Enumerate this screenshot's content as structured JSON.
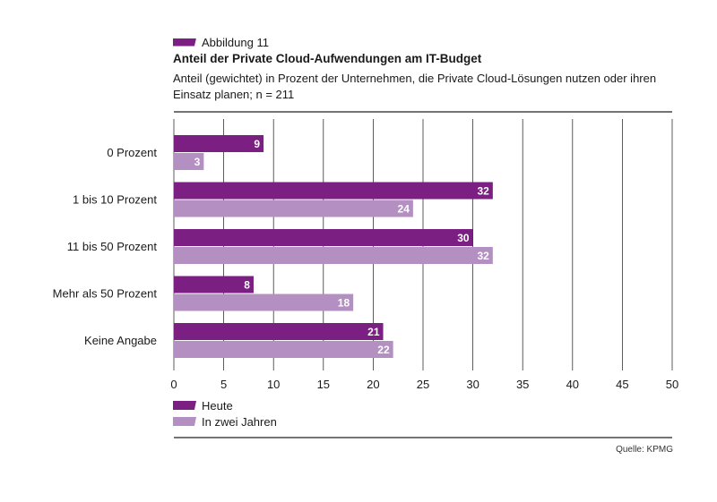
{
  "figure": {
    "label": "Abbildung 11",
    "title": "Anteil der Private Cloud-Aufwendungen am IT-Budget",
    "subtitle": "Anteil (gewichtet) in Prozent der Unternehmen, die Private Cloud-Lösungen nutzen oder ihren Einsatz planen; n = 211",
    "source": "Quelle: KPMG"
  },
  "colors": {
    "series_1": "#7b1f82",
    "series_2": "#b48fc2",
    "grid": "#333333"
  },
  "chart_data": {
    "type": "bar",
    "orientation": "horizontal",
    "categories": [
      "0 Prozent",
      "1 bis 10 Prozent",
      "11 bis 50 Prozent",
      "Mehr als 50 Prozent",
      "Keine Angabe"
    ],
    "series": [
      {
        "name": "Heute",
        "values": [
          9,
          32,
          30,
          8,
          21
        ]
      },
      {
        "name": "In zwei Jahren",
        "values": [
          3,
          24,
          32,
          18,
          22
        ]
      }
    ],
    "xlim": [
      0,
      50
    ],
    "xticks": [
      0,
      5,
      10,
      15,
      20,
      25,
      30,
      35,
      40,
      45,
      50
    ],
    "grid": true,
    "legend_position": "bottom-left"
  }
}
